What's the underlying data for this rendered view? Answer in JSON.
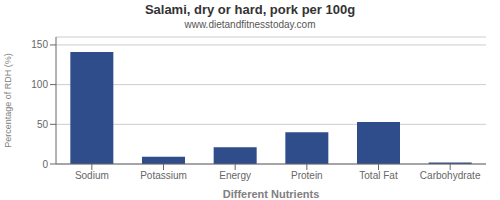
{
  "chart_data": {
    "type": "bar",
    "title": "Salami, dry or hard, pork per 100g",
    "subtitle": "www.dietandfitnesstoday.com",
    "xlabel": "Different Nutrients",
    "ylabel": "Percentage of RDH (%)",
    "categories": [
      "Sodium",
      "Potassium",
      "Energy",
      "Protein",
      "Total Fat",
      "Carbohydrate"
    ],
    "values": [
      141,
      9,
      21,
      40,
      53,
      2
    ],
    "color": "#2E4D8A",
    "ylim": [
      0,
      160
    ],
    "yticks": [
      0,
      50,
      100,
      150
    ],
    "grid": true
  }
}
